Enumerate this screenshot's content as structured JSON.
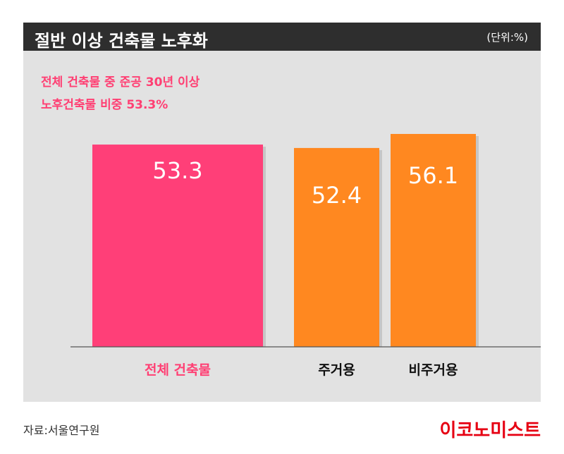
{
  "header": {
    "title": "절반 이상 건축물 노후화",
    "unit": "(단위:%)"
  },
  "subtitle": {
    "line1": "전체 건축물 중 준공 30년 이상",
    "line2": "노후건축물 비중 53.3%"
  },
  "footer": {
    "source": "자료:서울연구원",
    "brand": "이코노미스트"
  },
  "colors": {
    "title_bg": "#2e2e2e",
    "panel_bg": "#e2e2e2",
    "total_bar": "#ff3f78",
    "sub_bar": "#ff8820",
    "highlight_text": "#ff3f73",
    "brand": "#e60012"
  },
  "chart_data": {
    "type": "bar",
    "title": "절반 이상 건축물 노후화",
    "unit": "(단위:%)",
    "categories": [
      "전체 건축물",
      "주거용",
      "비주거용"
    ],
    "values": [
      53.3,
      52.4,
      56.1
    ],
    "value_labels": [
      "53.3",
      "52.4",
      "56.1"
    ],
    "bar_colors": [
      "#ff3f78",
      "#ff8820",
      "#ff8820"
    ],
    "label_colors": [
      "#ff3f73",
      "#111111",
      "#111111"
    ],
    "ylim": [
      0,
      56.1
    ],
    "grid": false,
    "xlabel": "",
    "ylabel": ""
  }
}
